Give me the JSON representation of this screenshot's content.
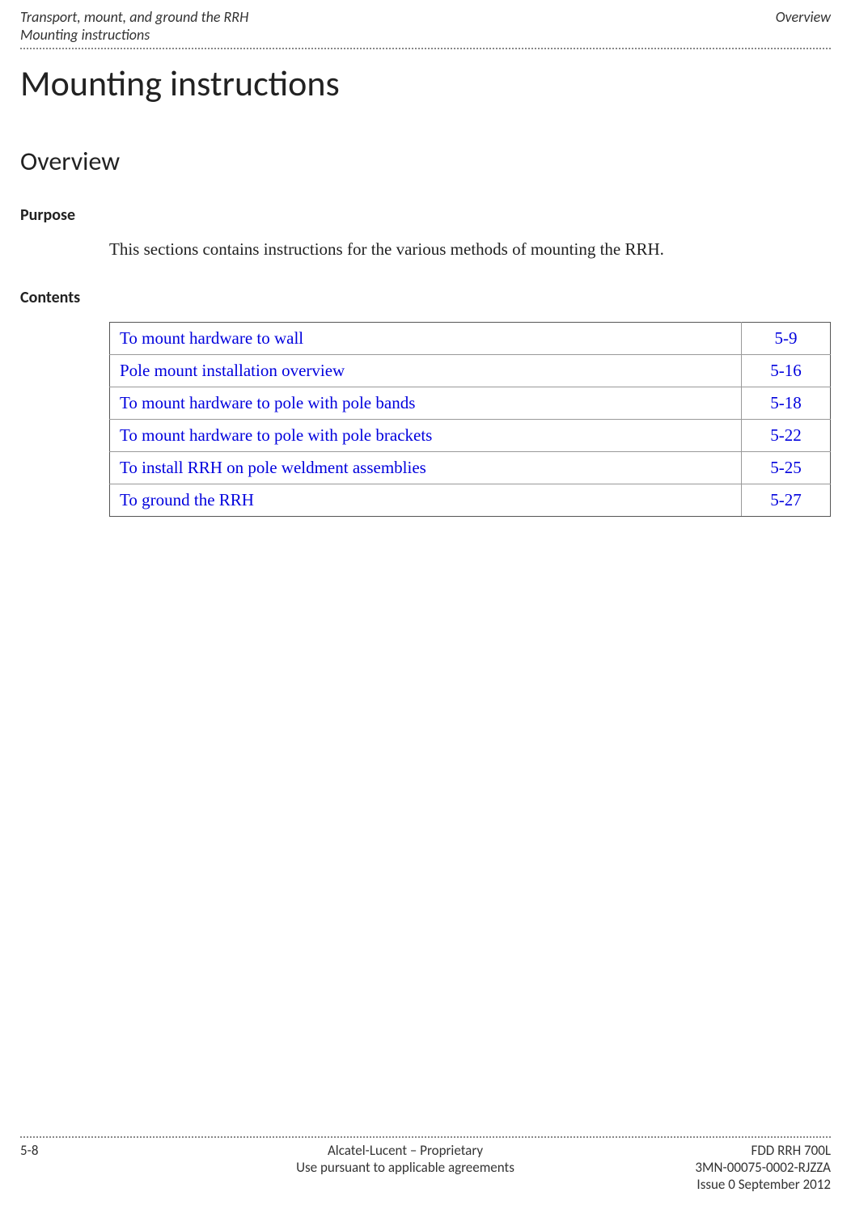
{
  "header": {
    "left_line1": "Transport, mount, and ground the RRH",
    "left_line2": "Mounting instructions",
    "right_line1": "Overview"
  },
  "main_title": "Mounting instructions",
  "overview_title": "Overview",
  "purpose_heading": "Purpose",
  "purpose_text": "This sections contains instructions for the various methods of mounting the RRH.",
  "contents_heading": "Contents",
  "contents": [
    {
      "title": "To mount hardware to wall",
      "page": "5-9"
    },
    {
      "title": "Pole mount installation overview",
      "page": "5-16"
    },
    {
      "title": "To mount hardware to pole with pole bands",
      "page": "5-18"
    },
    {
      "title": "To mount hardware to pole with pole brackets",
      "page": "5-22"
    },
    {
      "title": "To install RRH on pole weldment assemblies",
      "page": "5-25"
    },
    {
      "title": "To ground the RRH",
      "page": "5-27"
    }
  ],
  "footer": {
    "left": "5-8",
    "center_line1": "Alcatel-Lucent – Proprietary",
    "center_line2": "Use pursuant to applicable agreements",
    "right_line1": "FDD RRH 700L",
    "right_line2": "3MN-00075-0002-RJZZA",
    "right_line3": "Issue 0   September 2012"
  },
  "colors": {
    "link": "#0000dd",
    "text": "#222222",
    "rule": "#888888",
    "table_border": "#555555",
    "table_inner": "#999999",
    "background": "#ffffff"
  }
}
